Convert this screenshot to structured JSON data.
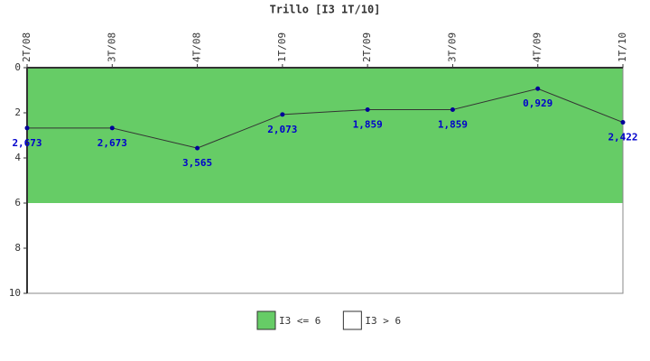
{
  "chart_data": {
    "type": "line",
    "title": "Trillo [I3 1T/10]",
    "categories": [
      "2T/08",
      "3T/08",
      "4T/08",
      "1T/09",
      "2T/09",
      "3T/09",
      "4T/09",
      "1T/10"
    ],
    "series": [
      {
        "name": null,
        "color": "#333333",
        "marker_color": "#000099",
        "label_color": "#0000cc",
        "values": [
          2.673,
          2.673,
          3.565,
          2.073,
          1.859,
          1.859,
          0.929,
          2.422
        ],
        "value_labels": [
          "2,673",
          "2,673",
          "3,565",
          "2,073",
          "1,859",
          "1,859",
          "0,929",
          "2,422"
        ]
      }
    ],
    "bands": [
      {
        "name": "I3 <= 6",
        "color": "#66cc66",
        "from": 0,
        "to": 6
      },
      {
        "name": "I3 > 6",
        "color": "#ffffff",
        "from": 6,
        "to": 10
      }
    ],
    "ylim": [
      0,
      10
    ],
    "yticks": [
      0,
      2,
      4,
      6,
      8,
      10
    ],
    "y_inverted": true,
    "legend": "bottom"
  }
}
